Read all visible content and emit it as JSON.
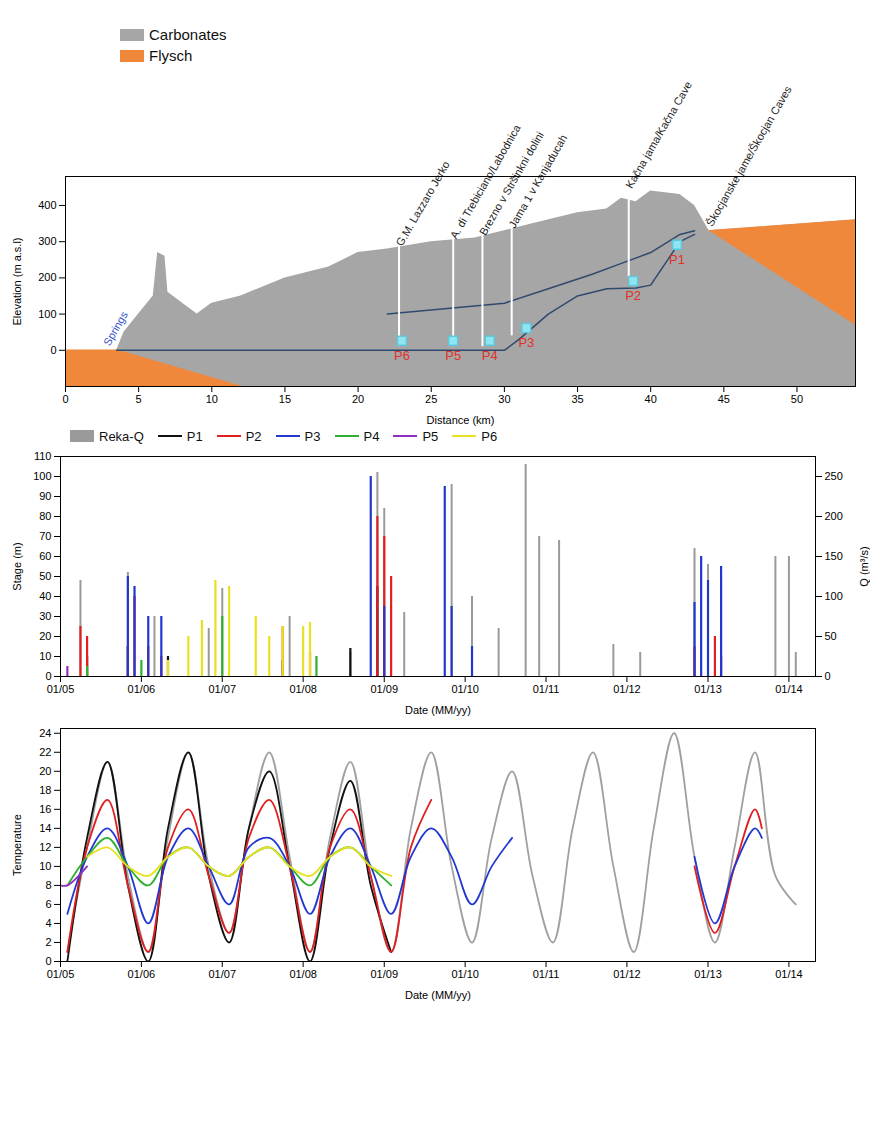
{
  "chart_data": [
    {
      "type": "area",
      "xlabel": "Distance (km)",
      "ylabel": "Elevation (m a.s.l)",
      "xlim": [
        0,
        54
      ],
      "ylim": [
        -100,
        480
      ],
      "xticks": [
        0,
        5,
        10,
        15,
        20,
        25,
        30,
        35,
        40,
        45,
        50
      ],
      "yticks": [
        0,
        100,
        200,
        300,
        400
      ],
      "legend": "top-left",
      "series": [
        {
          "name": "Carbonates",
          "color": "#a6a6a6",
          "type": "area",
          "x": [
            3.5,
            4,
            5,
            6,
            6.3,
            6.8,
            7,
            8,
            9,
            10,
            12,
            15,
            18,
            20,
            22,
            25,
            28,
            30,
            32,
            35,
            37,
            38,
            39,
            40,
            42,
            43,
            44,
            54
          ],
          "values": [
            0,
            50,
            100,
            150,
            270,
            260,
            160,
            130,
            100,
            130,
            150,
            200,
            230,
            270,
            280,
            300,
            310,
            330,
            350,
            380,
            390,
            420,
            410,
            440,
            430,
            400,
            330,
            360
          ]
        },
        {
          "name": "Flysch",
          "color": "#f0883c",
          "type": "polygon",
          "polygons": [
            {
              "x": [
                0,
                3.5,
                12,
                0
              ],
              "y": [
                0,
                0,
                -100,
                -100
              ]
            },
            {
              "x": [
                44,
                54,
                54
              ],
              "y": [
                330,
                360,
                70
              ]
            }
          ]
        },
        {
          "color": "#2f4a6e",
          "type": "line",
          "x": [
            3.5,
            10,
            20,
            30,
            31,
            33,
            35,
            37,
            39,
            40,
            41,
            42,
            43
          ],
          "values": [
            0,
            0,
            0,
            0,
            30,
            100,
            150,
            170,
            172,
            180,
            240,
            300,
            320
          ]
        },
        {
          "color": "#2f4a6e",
          "type": "line",
          "x": [
            22,
            30,
            33,
            36,
            38,
            40,
            42,
            43
          ],
          "values": [
            100,
            130,
            170,
            210,
            240,
            270,
            320,
            330
          ]
        }
      ],
      "annotations": [
        {
          "text": "Springs",
          "x": 2.8,
          "y": 15,
          "color": "#3050c8"
        },
        {
          "text": "G.M. Lazzaro Jerko",
          "x": 22.8,
          "y": 290,
          "y1": 10
        },
        {
          "text": "A. di Trebiciano/Labodnica",
          "x": 26.5,
          "y": 310,
          "y1": 10
        },
        {
          "text": "Brezno v Stršinkni dolini",
          "x": 28.5,
          "y": 320,
          "y1": 10
        },
        {
          "text": "Jama 1 v Kanjaducah",
          "x": 30.5,
          "y": 340,
          "y1": 40
        },
        {
          "text": "Kačna jama/Kačna Cave",
          "x": 38.5,
          "y": 450,
          "y1": 200
        },
        {
          "text": "Škocjanske jame/Škocjan Caves",
          "x": 44,
          "y": 345
        }
      ],
      "piezometers": [
        {
          "text": "P1",
          "x": 41.8,
          "y": 250
        },
        {
          "text": "P2",
          "x": 38.8,
          "y": 150
        },
        {
          "text": "P3",
          "x": 31.5,
          "y": 20
        },
        {
          "text": "P4",
          "x": 29,
          "y": -15
        },
        {
          "text": "P5",
          "x": 26.5,
          "y": -15
        },
        {
          "text": "P6",
          "x": 23,
          "y": -15
        }
      ]
    },
    {
      "type": "bar",
      "xlabel": "Date (MM/yy)",
      "ylabel": "Stage (m)",
      "y2label": "Q (m³/s)",
      "xlim": [
        "2005-01",
        "2014-05"
      ],
      "ylim": [
        0,
        110
      ],
      "y2lim": [
        0,
        275
      ],
      "xticks": [
        {
          "value": "2005-01",
          "label": "01/05"
        },
        {
          "value": "2006-01",
          "label": "01/06"
        },
        {
          "value": "2007-01",
          "label": "01/07"
        },
        {
          "value": "2008-01",
          "label": "01/08"
        },
        {
          "value": "2009-01",
          "label": "01/09"
        },
        {
          "value": "2010-01",
          "label": "01/10"
        },
        {
          "value": "2011-01",
          "label": "01/11"
        },
        {
          "value": "2012-01",
          "label": "01/12"
        },
        {
          "value": "2013-01",
          "label": "01/13"
        },
        {
          "value": "2014-01",
          "label": "01/14"
        }
      ],
      "yticks": [
        0,
        10,
        20,
        30,
        40,
        50,
        60,
        70,
        80,
        90,
        100,
        110
      ],
      "y2ticks": [
        0,
        50,
        100,
        150,
        200,
        250
      ],
      "legend": "top",
      "series": [
        {
          "name": "Reka-Q",
          "color": "#9a9a9a",
          "axis": "y2",
          "x": [
            "2005-04",
            "2005-11",
            "2006-03",
            "2006-11",
            "2007-01",
            "2007-11",
            "2008-08",
            "2008-12",
            "2009-01",
            "2009-04",
            "2009-11",
            "2010-02",
            "2010-06",
            "2010-10",
            "2010-12",
            "2011-03",
            "2011-11",
            "2012-03",
            "2012-11",
            "2013-01",
            "2013-03",
            "2013-11",
            "2014-01",
            "2014-02"
          ],
          "values": [
            120,
            130,
            75,
            60,
            110,
            75,
            30,
            255,
            210,
            80,
            240,
            100,
            60,
            265,
            175,
            170,
            40,
            30,
            160,
            140,
            120,
            150,
            150,
            30
          ]
        },
        {
          "name": "P1",
          "color": "#111111",
          "x": [
            "2005-05",
            "2005-11",
            "2006-05",
            "2007-10",
            "2008-08",
            "2008-12"
          ],
          "values": [
            10,
            15,
            10,
            8,
            14,
            45
          ]
        },
        {
          "name": "P2",
          "color": "#e02020",
          "x": [
            "2005-04",
            "2005-05",
            "2005-11",
            "2005-12",
            "2006-02",
            "2006-04",
            "2007-10",
            "2008-02",
            "2008-12",
            "2009-01",
            "2009-02",
            "2012-11",
            "2013-02",
            "2013-03"
          ],
          "values": [
            25,
            20,
            15,
            40,
            15,
            10,
            25,
            12,
            80,
            70,
            50,
            15,
            20,
            10
          ]
        },
        {
          "name": "P3",
          "color": "#2038d0",
          "x": [
            "2005-11",
            "2005-12",
            "2006-02",
            "2006-04",
            "2008-11",
            "2009-01",
            "2009-10",
            "2009-11",
            "2010-02",
            "2012-11",
            "2012-12",
            "2013-01",
            "2013-03"
          ],
          "values": [
            50,
            45,
            30,
            30,
            100,
            35,
            95,
            35,
            15,
            37,
            60,
            48,
            55
          ]
        },
        {
          "name": "P4",
          "color": "#30b030",
          "x": [
            "2005-05",
            "2006-01",
            "2007-01",
            "2008-03"
          ],
          "values": [
            5,
            8,
            30,
            10
          ]
        },
        {
          "name": "P5",
          "color": "#9030c0",
          "x": [
            "2005-02"
          ],
          "values": [
            5
          ]
        },
        {
          "name": "P6",
          "color": "#e8e020",
          "x": [
            "2006-05",
            "2006-08",
            "2006-10",
            "2006-12",
            "2007-02",
            "2007-06",
            "2007-08",
            "2007-10",
            "2008-01",
            "2008-02"
          ],
          "values": [
            8,
            20,
            28,
            48,
            45,
            30,
            20,
            25,
            25,
            27
          ]
        }
      ]
    },
    {
      "type": "line",
      "xlabel": "Date (MM/yy)",
      "ylabel": "Temperature",
      "xlim": [
        "2005-01",
        "2014-05"
      ],
      "ylim": [
        0,
        24.5
      ],
      "xticks": [
        {
          "value": "2005-01",
          "label": "01/05"
        },
        {
          "value": "2006-01",
          "label": "01/06"
        },
        {
          "value": "2007-01",
          "label": "01/07"
        },
        {
          "value": "2008-01",
          "label": "01/08"
        },
        {
          "value": "2009-01",
          "label": "01/09"
        },
        {
          "value": "2010-01",
          "label": "01/10"
        },
        {
          "value": "2011-01",
          "label": "01/11"
        },
        {
          "value": "2012-01",
          "label": "01/12"
        },
        {
          "value": "2013-01",
          "label": "01/13"
        },
        {
          "value": "2014-01",
          "label": "01/14"
        }
      ],
      "yticks": [
        0,
        2,
        4,
        6,
        8,
        10,
        12,
        14,
        16,
        18,
        20,
        22,
        24
      ],
      "series": [
        {
          "color": "#a0a0a0",
          "x": [
            "2005-02",
            "2005-05",
            "2005-08",
            "2005-11",
            "2006-02",
            "2006-05",
            "2006-08",
            "2006-11",
            "2007-02",
            "2007-05",
            "2007-08",
            "2007-11",
            "2008-02",
            "2008-05",
            "2008-08",
            "2008-11",
            "2009-02",
            "2009-05",
            "2009-08",
            "2009-11",
            "2010-02",
            "2010-05",
            "2010-08",
            "2010-11",
            "2011-02",
            "2011-05",
            "2011-08",
            "2011-11",
            "2012-02",
            "2012-05",
            "2012-08",
            "2012-11",
            "2013-02",
            "2013-05",
            "2013-08",
            "2013-11",
            "2014-02"
          ],
          "values": [
            1,
            12,
            21,
            9,
            1,
            13,
            22,
            10,
            3,
            14,
            22,
            11,
            1,
            13,
            21,
            9,
            1,
            14,
            22,
            10,
            2,
            13,
            20,
            9,
            2,
            14,
            22,
            10,
            1,
            14,
            24,
            11,
            2,
            12,
            22,
            9,
            6
          ]
        },
        {
          "color": "#111111",
          "x": [
            "2005-02",
            "2005-05",
            "2005-08",
            "2005-11",
            "2006-02",
            "2006-05",
            "2006-08",
            "2006-11",
            "2007-02",
            "2007-05",
            "2007-08",
            "2007-11",
            "2008-02",
            "2008-05",
            "2008-08",
            "2008-11",
            "2009-02"
          ],
          "values": [
            0,
            13,
            21,
            8,
            0,
            14,
            22,
            9,
            2,
            14,
            20,
            10,
            0,
            12,
            19,
            8,
            1
          ]
        },
        {
          "color": "#e02020",
          "x": [
            "2005-02",
            "2005-05",
            "2005-08",
            "2005-11",
            "2006-02",
            "2006-05",
            "2006-08",
            "2006-11",
            "2007-02",
            "2007-05",
            "2007-08",
            "2007-11",
            "2008-02",
            "2008-05",
            "2008-08",
            "2008-11",
            "2009-02",
            "2009-05",
            "2009-08",
            "2012-09",
            "2012-11",
            "2013-02",
            "2013-05",
            "2013-08",
            "2013-09"
          ],
          "values": [
            1,
            12,
            17,
            8,
            1,
            12,
            16,
            9,
            3,
            13,
            17,
            10,
            1,
            12,
            16,
            9,
            1,
            12,
            17,
            null,
            10,
            3,
            10,
            16,
            14
          ]
        },
        {
          "color": "#2038d0",
          "x": [
            "2005-02",
            "2005-05",
            "2005-08",
            "2005-11",
            "2006-02",
            "2006-05",
            "2006-08",
            "2006-11",
            "2007-02",
            "2007-05",
            "2007-08",
            "2007-11",
            "2008-02",
            "2008-05",
            "2008-08",
            "2008-11",
            "2009-02",
            "2009-05",
            "2009-08",
            "2009-11",
            "2010-02",
            "2010-05",
            "2010-08",
            "2012-09",
            "2012-11",
            "2013-02",
            "2013-05",
            "2013-08",
            "2013-09"
          ],
          "values": [
            5,
            11,
            14,
            10,
            4,
            11,
            14,
            10,
            6,
            12,
            13,
            10,
            5,
            11,
            14,
            10,
            5,
            11,
            14,
            11,
            6,
            10,
            13,
            null,
            11,
            4,
            10,
            14,
            13
          ]
        },
        {
          "color": "#30b030",
          "x": [
            "2005-02",
            "2005-05",
            "2005-08",
            "2005-11",
            "2006-02",
            "2006-05",
            "2006-08",
            "2006-11",
            "2007-02",
            "2007-05",
            "2007-08",
            "2007-11",
            "2008-02",
            "2008-05",
            "2008-08",
            "2008-11",
            "2009-02"
          ],
          "values": [
            8,
            11,
            13,
            10,
            8,
            11,
            12,
            10,
            9,
            11,
            12,
            10,
            8,
            11,
            12,
            10,
            8
          ]
        },
        {
          "color": "#9030c0",
          "x": [
            "2005-01",
            "2005-02",
            "2005-05"
          ],
          "values": [
            8,
            8,
            10
          ]
        },
        {
          "color": "#e8e020",
          "x": [
            "2005-05",
            "2005-08",
            "2005-11",
            "2006-02",
            "2006-05",
            "2006-08",
            "2006-11",
            "2007-02",
            "2007-05",
            "2007-08",
            "2007-11",
            "2008-02",
            "2008-05",
            "2008-08",
            "2008-11",
            "2009-02"
          ],
          "values": [
            11,
            12,
            10,
            9,
            11,
            12,
            10,
            9,
            11,
            12,
            10,
            9,
            11,
            12,
            10,
            9
          ]
        }
      ]
    }
  ]
}
